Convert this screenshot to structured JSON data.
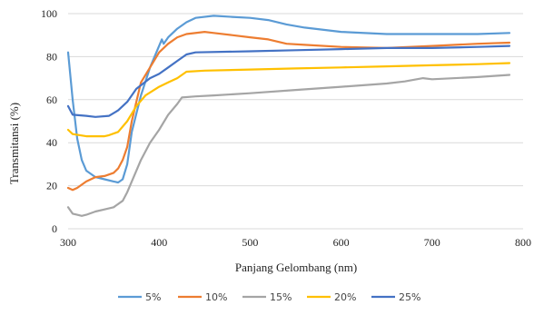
{
  "chart_data": {
    "type": "line",
    "title": "",
    "xlabel": "Panjang Gelombang (nm)",
    "ylabel": "Transmitansi (%)",
    "xlim": [
      300,
      800
    ],
    "ylim": [
      0,
      100
    ],
    "x_ticks": [
      "300",
      "400",
      "500",
      "600",
      "700",
      "800"
    ],
    "y_ticks": [
      "0",
      "20",
      "40",
      "60",
      "80",
      "100"
    ],
    "grid": "horizontal",
    "legend_position": "bottom",
    "series": [
      {
        "name": "5%",
        "color": "#5b9bd5",
        "points": [
          [
            300,
            82
          ],
          [
            305,
            60
          ],
          [
            310,
            42
          ],
          [
            315,
            32
          ],
          [
            320,
            27
          ],
          [
            330,
            24
          ],
          [
            340,
            23
          ],
          [
            350,
            22
          ],
          [
            355,
            21.5
          ],
          [
            360,
            23
          ],
          [
            365,
            30
          ],
          [
            370,
            45
          ],
          [
            380,
            62
          ],
          [
            390,
            75
          ],
          [
            400,
            85
          ],
          [
            403,
            88
          ],
          [
            405,
            86
          ],
          [
            410,
            89
          ],
          [
            420,
            93
          ],
          [
            430,
            96
          ],
          [
            440,
            98
          ],
          [
            460,
            99
          ],
          [
            480,
            98.5
          ],
          [
            500,
            98
          ],
          [
            520,
            97
          ],
          [
            540,
            95
          ],
          [
            560,
            93.5
          ],
          [
            600,
            91.5
          ],
          [
            650,
            90.5
          ],
          [
            700,
            90.5
          ],
          [
            750,
            90.5
          ],
          [
            785,
            91
          ]
        ]
      },
      {
        "name": "10%",
        "color": "#ed7d31",
        "points": [
          [
            300,
            19
          ],
          [
            305,
            18
          ],
          [
            310,
            19
          ],
          [
            320,
            22
          ],
          [
            330,
            24
          ],
          [
            340,
            24.5
          ],
          [
            350,
            26
          ],
          [
            355,
            28
          ],
          [
            360,
            32
          ],
          [
            365,
            38
          ],
          [
            370,
            50
          ],
          [
            380,
            68
          ],
          [
            390,
            75
          ],
          [
            400,
            82
          ],
          [
            410,
            86
          ],
          [
            420,
            89
          ],
          [
            430,
            90.5
          ],
          [
            450,
            91.5
          ],
          [
            460,
            91
          ],
          [
            480,
            90
          ],
          [
            500,
            89
          ],
          [
            520,
            88
          ],
          [
            540,
            86
          ],
          [
            560,
            85.5
          ],
          [
            600,
            84.5
          ],
          [
            650,
            84
          ],
          [
            700,
            85
          ],
          [
            750,
            86
          ],
          [
            785,
            86.5
          ]
        ]
      },
      {
        "name": "15%",
        "color": "#a5a5a5",
        "points": [
          [
            300,
            10
          ],
          [
            305,
            7
          ],
          [
            310,
            6.5
          ],
          [
            315,
            6
          ],
          [
            320,
            6.5
          ],
          [
            330,
            8
          ],
          [
            340,
            9
          ],
          [
            350,
            10
          ],
          [
            360,
            13
          ],
          [
            365,
            17
          ],
          [
            370,
            22
          ],
          [
            380,
            32
          ],
          [
            390,
            40
          ],
          [
            400,
            46
          ],
          [
            410,
            53
          ],
          [
            420,
            58
          ],
          [
            425,
            61
          ],
          [
            440,
            61.5
          ],
          [
            460,
            62
          ],
          [
            500,
            63
          ],
          [
            550,
            64.5
          ],
          [
            600,
            66
          ],
          [
            650,
            67.5
          ],
          [
            670,
            68.5
          ],
          [
            690,
            70
          ],
          [
            700,
            69.5
          ],
          [
            750,
            70.5
          ],
          [
            785,
            71.5
          ]
        ]
      },
      {
        "name": "20%",
        "color": "#ffc000",
        "points": [
          [
            300,
            46
          ],
          [
            305,
            44
          ],
          [
            320,
            43
          ],
          [
            340,
            43
          ],
          [
            345,
            43.5
          ],
          [
            355,
            45
          ],
          [
            365,
            50
          ],
          [
            375,
            57
          ],
          [
            385,
            62
          ],
          [
            400,
            66
          ],
          [
            410,
            68
          ],
          [
            420,
            70
          ],
          [
            430,
            73
          ],
          [
            450,
            73.5
          ],
          [
            500,
            74
          ],
          [
            550,
            74.5
          ],
          [
            600,
            75
          ],
          [
            650,
            75.5
          ],
          [
            700,
            76
          ],
          [
            750,
            76.5
          ],
          [
            785,
            77
          ]
        ]
      },
      {
        "name": "25%",
        "color": "#4472c4",
        "points": [
          [
            300,
            57
          ],
          [
            305,
            53
          ],
          [
            320,
            52.5
          ],
          [
            330,
            52
          ],
          [
            345,
            52.5
          ],
          [
            355,
            55
          ],
          [
            365,
            59
          ],
          [
            375,
            65
          ],
          [
            390,
            70
          ],
          [
            400,
            72
          ],
          [
            410,
            75
          ],
          [
            420,
            78
          ],
          [
            430,
            81
          ],
          [
            440,
            82
          ],
          [
            500,
            82.5
          ],
          [
            550,
            83
          ],
          [
            600,
            83.5
          ],
          [
            650,
            84
          ],
          [
            700,
            84
          ],
          [
            750,
            84.5
          ],
          [
            785,
            85
          ]
        ]
      }
    ]
  }
}
